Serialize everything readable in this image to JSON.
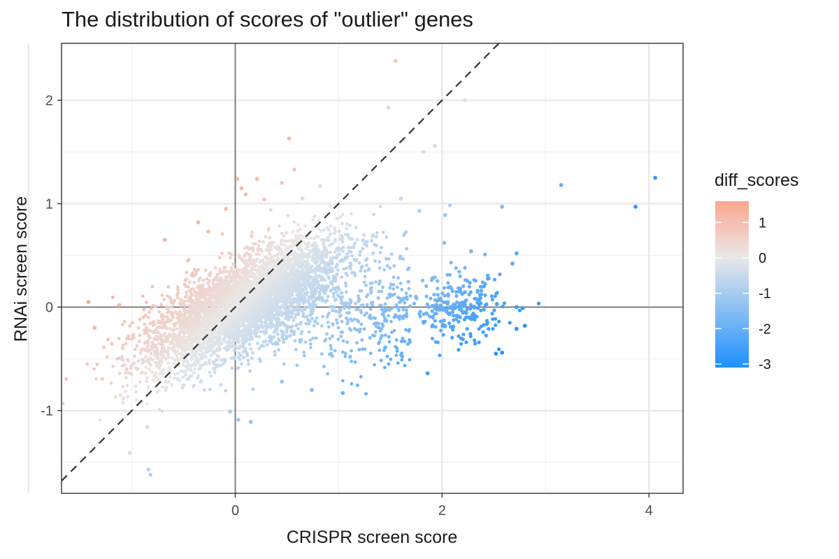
{
  "chart_data": {
    "type": "scatter",
    "title": "The distribution of scores of \"outlier\" genes",
    "xlabel": "CRISPR screen score",
    "ylabel": "RNAi screen score",
    "xlim": [
      -1.68,
      4.33
    ],
    "ylim": [
      -1.8,
      2.55
    ],
    "x_ticks": [
      0,
      2,
      4
    ],
    "y_ticks": [
      -1,
      0,
      1,
      2
    ],
    "grid": true,
    "reference_lines": {
      "x_zero": true,
      "y_zero": true,
      "diagonal_y_equals_x": true
    },
    "color_scale": {
      "name": "diff_scores",
      "type": "gradient2",
      "low_color": "#1E90FF",
      "mid_color": "#E8E8E8",
      "high_color": "#FCA68F",
      "domain": [
        -3.1,
        1.6
      ],
      "breaks": [
        1,
        0,
        -1,
        -2,
        -3
      ],
      "legend_position": "right"
    },
    "points": [
      [
        1.55,
        2.38
      ],
      [
        1.48,
        1.93
      ],
      [
        2.22,
        2.0
      ],
      [
        0.52,
        1.63
      ],
      [
        1.93,
        1.56
      ],
      [
        1.82,
        1.5
      ],
      [
        0.57,
        1.33
      ],
      [
        0.02,
        1.24
      ],
      [
        0.21,
        1.24
      ],
      [
        0.45,
        1.2
      ],
      [
        0.06,
        1.15
      ],
      [
        0.82,
        1.17
      ],
      [
        0.1,
        1.09
      ],
      [
        -0.09,
        0.95
      ],
      [
        0.28,
        1.04
      ],
      [
        0.65,
        1.05
      ],
      [
        -0.36,
        0.82
      ],
      [
        -0.26,
        0.73
      ],
      [
        -0.68,
        0.65
      ],
      [
        1.6,
        1.05
      ],
      [
        1.78,
        0.93
      ],
      [
        2.03,
        0.89
      ],
      [
        2.58,
        0.97
      ],
      [
        3.15,
        1.18
      ],
      [
        3.87,
        0.97
      ],
      [
        4.06,
        1.25
      ],
      [
        -1.42,
        0.05
      ],
      [
        -1.36,
        -0.2
      ],
      [
        -1.12,
        0.02
      ],
      [
        -1.05,
        -0.6
      ],
      [
        -0.85,
        -1.16
      ],
      [
        -0.82,
        -1.62
      ],
      [
        -0.84,
        -1.57
      ],
      [
        -1.02,
        -1.41
      ],
      [
        -0.05,
        -1.01
      ],
      [
        0.03,
        -1.09
      ],
      [
        0.15,
        -1.11
      ],
      [
        0.45,
        -0.72
      ],
      [
        0.74,
        -0.8
      ],
      [
        1.04,
        -0.83
      ],
      [
        1.86,
        -0.64
      ],
      [
        1.45,
        -0.39
      ],
      [
        2.58,
        -0.44
      ],
      [
        2.52,
        -0.45
      ],
      [
        2.72,
        -0.21
      ],
      [
        2.8,
        -0.18
      ],
      [
        2.72,
        0.52
      ],
      [
        2.68,
        0.42
      ],
      [
        2.78,
        -0.01
      ],
      [
        2.72,
        0.0
      ],
      [
        2.53,
        0.03
      ],
      [
        2.28,
        0.54
      ],
      [
        2.02,
        0.62
      ]
    ]
  }
}
